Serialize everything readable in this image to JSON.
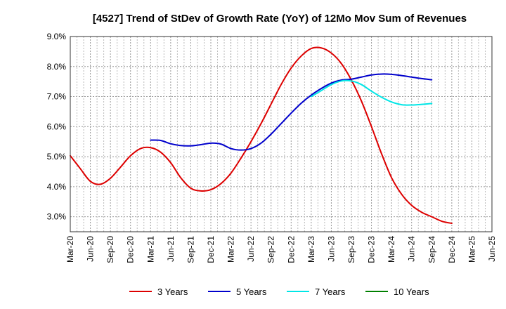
{
  "chart_data": {
    "type": "line",
    "title": "[4527]  Trend of StDev of Growth Rate (YoY) of 12Mo Mov Sum of Revenues",
    "xlabel": "",
    "ylabel": "",
    "ylim": [
      2.5,
      9.0
    ],
    "y_ticks": [
      3.0,
      4.0,
      5.0,
      6.0,
      7.0,
      8.0,
      9.0
    ],
    "y_tick_labels": [
      "3.0%",
      "4.0%",
      "5.0%",
      "6.0%",
      "7.0%",
      "8.0%",
      "9.0%"
    ],
    "x_range": [
      0,
      21
    ],
    "categories": [
      "Mar-20",
      "Jun-20",
      "Sep-20",
      "Dec-20",
      "Mar-21",
      "Jun-21",
      "Sep-21",
      "Dec-21",
      "Mar-22",
      "Jun-22",
      "Sep-22",
      "Dec-22",
      "Mar-23",
      "Jun-23",
      "Sep-23",
      "Dec-23",
      "Mar-24",
      "Jun-24",
      "Sep-24",
      "Dec-24",
      "Mar-25",
      "Jun-25"
    ],
    "grid": "dotted",
    "legend_position": "bottom",
    "series": [
      {
        "name": "3 Years",
        "color": "#dd0000",
        "points": [
          [
            0,
            5.03
          ],
          [
            0.5,
            4.6
          ],
          [
            1,
            4.18
          ],
          [
            1.5,
            4.08
          ],
          [
            2,
            4.28
          ],
          [
            2.5,
            4.65
          ],
          [
            3,
            5.03
          ],
          [
            3.5,
            5.27
          ],
          [
            4,
            5.3
          ],
          [
            4.5,
            5.15
          ],
          [
            5,
            4.8
          ],
          [
            5.5,
            4.3
          ],
          [
            6,
            3.95
          ],
          [
            6.5,
            3.86
          ],
          [
            7,
            3.9
          ],
          [
            7.5,
            4.1
          ],
          [
            8,
            4.45
          ],
          [
            8.5,
            4.95
          ],
          [
            9,
            5.5
          ],
          [
            9.5,
            6.1
          ],
          [
            10,
            6.75
          ],
          [
            10.5,
            7.4
          ],
          [
            11,
            7.95
          ],
          [
            11.5,
            8.35
          ],
          [
            12,
            8.6
          ],
          [
            12.5,
            8.62
          ],
          [
            13,
            8.45
          ],
          [
            13.5,
            8.1
          ],
          [
            14,
            7.55
          ],
          [
            14.5,
            6.85
          ],
          [
            15,
            6.0
          ],
          [
            15.5,
            5.1
          ],
          [
            16,
            4.3
          ],
          [
            16.5,
            3.75
          ],
          [
            17,
            3.38
          ],
          [
            17.5,
            3.15
          ],
          [
            18,
            3.0
          ],
          [
            18.5,
            2.85
          ],
          [
            19,
            2.78
          ]
        ]
      },
      {
        "name": "5 Years",
        "color": "#0000cc",
        "points": [
          [
            4,
            5.55
          ],
          [
            4.5,
            5.54
          ],
          [
            5,
            5.43
          ],
          [
            5.5,
            5.37
          ],
          [
            6,
            5.36
          ],
          [
            6.5,
            5.4
          ],
          [
            7,
            5.45
          ],
          [
            7.5,
            5.42
          ],
          [
            8,
            5.27
          ],
          [
            8.5,
            5.22
          ],
          [
            9,
            5.27
          ],
          [
            9.5,
            5.45
          ],
          [
            10,
            5.75
          ],
          [
            10.5,
            6.1
          ],
          [
            11,
            6.45
          ],
          [
            11.5,
            6.78
          ],
          [
            12,
            7.05
          ],
          [
            12.5,
            7.27
          ],
          [
            13,
            7.45
          ],
          [
            13.5,
            7.55
          ],
          [
            14,
            7.58
          ],
          [
            14.5,
            7.65
          ],
          [
            15,
            7.72
          ],
          [
            15.5,
            7.75
          ],
          [
            16,
            7.74
          ],
          [
            16.5,
            7.7
          ],
          [
            17,
            7.65
          ],
          [
            17.5,
            7.6
          ],
          [
            18,
            7.56
          ]
        ]
      },
      {
        "name": "7 Years",
        "color": "#00e6e6",
        "points": [
          [
            12,
            7.0
          ],
          [
            12.5,
            7.2
          ],
          [
            13,
            7.4
          ],
          [
            13.5,
            7.52
          ],
          [
            14,
            7.52
          ],
          [
            14.5,
            7.4
          ],
          [
            15,
            7.18
          ],
          [
            15.5,
            6.98
          ],
          [
            16,
            6.82
          ],
          [
            16.5,
            6.73
          ],
          [
            17,
            6.72
          ],
          [
            17.5,
            6.74
          ],
          [
            18,
            6.77
          ]
        ]
      },
      {
        "name": "10 Years",
        "color": "#008000",
        "points": []
      }
    ]
  }
}
